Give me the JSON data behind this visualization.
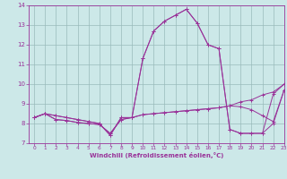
{
  "xlabel": "Windchill (Refroidissement éolien,°C)",
  "xlim": [
    -0.5,
    23
  ],
  "ylim": [
    7,
    14
  ],
  "xticks": [
    0,
    1,
    2,
    3,
    4,
    5,
    6,
    7,
    8,
    9,
    10,
    11,
    12,
    13,
    14,
    15,
    16,
    17,
    18,
    19,
    20,
    21,
    22,
    23
  ],
  "yticks": [
    7,
    8,
    9,
    10,
    11,
    12,
    13,
    14
  ],
  "bg_color": "#cce8e8",
  "line_color": "#993399",
  "grid_color": "#99bbbb",
  "series": [
    [
      8.3,
      8.5,
      8.4,
      8.3,
      8.2,
      8.1,
      8.0,
      7.4,
      8.3,
      8.3,
      11.3,
      12.7,
      13.2,
      13.5,
      13.8,
      13.1,
      12.0,
      11.8,
      7.7,
      7.5,
      7.5,
      7.5,
      8.0,
      9.7
    ],
    [
      8.3,
      8.5,
      8.4,
      8.3,
      8.2,
      8.1,
      8.0,
      7.4,
      8.3,
      8.3,
      11.3,
      12.7,
      13.2,
      13.5,
      13.8,
      13.1,
      12.0,
      11.8,
      7.7,
      7.5,
      7.5,
      7.5,
      9.5,
      10.0
    ],
    [
      8.3,
      8.5,
      8.2,
      8.15,
      8.05,
      8.0,
      7.95,
      7.5,
      8.2,
      8.3,
      8.45,
      8.5,
      8.55,
      8.6,
      8.65,
      8.7,
      8.75,
      8.8,
      8.9,
      9.1,
      9.2,
      9.45,
      9.6,
      10.0
    ],
    [
      8.3,
      8.5,
      8.2,
      8.15,
      8.05,
      8.0,
      7.95,
      7.5,
      8.2,
      8.3,
      8.45,
      8.5,
      8.55,
      8.6,
      8.65,
      8.7,
      8.75,
      8.8,
      8.9,
      8.85,
      8.7,
      8.4,
      8.1,
      9.7
    ]
  ]
}
